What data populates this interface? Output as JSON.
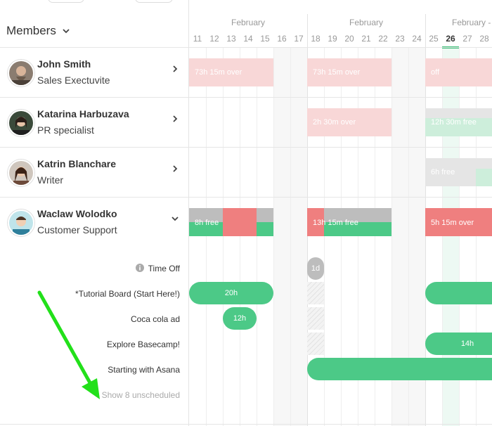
{
  "sidebar": {
    "title": "Members",
    "members": [
      {
        "name": "John Smith",
        "role": "Sales Exectuvite"
      },
      {
        "name": "Katarina Harbuzava",
        "role": "PR specialist"
      },
      {
        "name": "Katrin Blanchare",
        "role": "Writer"
      },
      {
        "name": "Waclaw Wolodko",
        "role": "Customer Support"
      }
    ]
  },
  "calendar": {
    "months": [
      "February",
      "February",
      "February -"
    ],
    "days": [
      "11",
      "12",
      "13",
      "14",
      "15",
      "16",
      "17",
      "18",
      "19",
      "20",
      "21",
      "22",
      "23",
      "24",
      "25",
      "26",
      "27",
      "28"
    ],
    "today": "26"
  },
  "capacity": {
    "john": [
      "73h 15m over",
      "73h 15m over",
      "off"
    ],
    "katarina": [
      "2h 30m over",
      "12h 30m free"
    ],
    "katrin": [
      "6h free"
    ],
    "waclaw": [
      "8h free",
      "13h 15m free",
      "5h 15m over"
    ]
  },
  "tasks": {
    "time_off_label": "Time Off",
    "time_off_pill": "1d",
    "items": [
      {
        "label": "*Tutorial Board (Start Here!)",
        "pill": "20h"
      },
      {
        "label": "Coca cola ad",
        "pill": "12h"
      },
      {
        "label": "Explore Basecamp!",
        "pill": "14h"
      },
      {
        "label": "Starting with Asana",
        "pill": ""
      }
    ],
    "show_unscheduled": "Show 8 unscheduled"
  },
  "colors": {
    "accent_green": "#4cc987",
    "over_red": "#ef7f7f",
    "over_pink": "#f8d7d7",
    "free_grey": "#bdbdbd"
  },
  "icons": {
    "members_dropdown": "chevron-down-icon",
    "member_expand": "chevron-right-icon",
    "info": "info-icon",
    "annotation": "green-arrow"
  }
}
